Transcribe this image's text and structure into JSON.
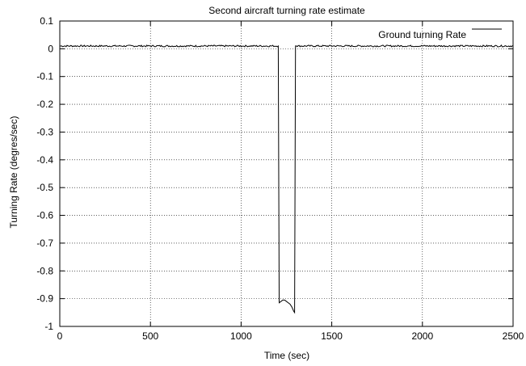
{
  "chart_data": {
    "type": "line",
    "title": "Second aircraft turning rate estimate",
    "xlabel": "Time (sec)",
    "ylabel": "Turning Rate (degres/sec)",
    "xlim": [
      0,
      2500
    ],
    "ylim": [
      -1,
      0.1
    ],
    "xticks": [
      0,
      500,
      1000,
      1500,
      2000,
      2500
    ],
    "yticks": [
      0.1,
      0,
      -0.1,
      -0.2,
      -0.3,
      -0.4,
      -0.5,
      -0.6,
      -0.7,
      -0.8,
      -0.9,
      -1
    ],
    "ytick_labels": [
      "0.1",
      "0",
      "-0.1",
      "-0.2",
      "-0.3",
      "-0.4",
      "-0.5",
      "-0.6",
      "-0.7",
      "-0.8",
      "-0.9",
      "-1"
    ],
    "grid": true,
    "legend_position": "top-right",
    "series": [
      {
        "name": "Ground turning Rate",
        "color": "#000000",
        "baseline": 0.01,
        "noise_amplitude": 0.003,
        "x": [
          0,
          1205,
          1210,
          1220,
          1230,
          1240,
          1250,
          1260,
          1270,
          1280,
          1290,
          1295,
          1300,
          1305,
          2500
        ],
        "y": [
          0.01,
          0.01,
          -0.915,
          -0.91,
          -0.905,
          -0.905,
          -0.91,
          -0.915,
          -0.92,
          -0.93,
          -0.945,
          -0.95,
          0.01,
          0.01,
          0.01
        ]
      }
    ]
  }
}
